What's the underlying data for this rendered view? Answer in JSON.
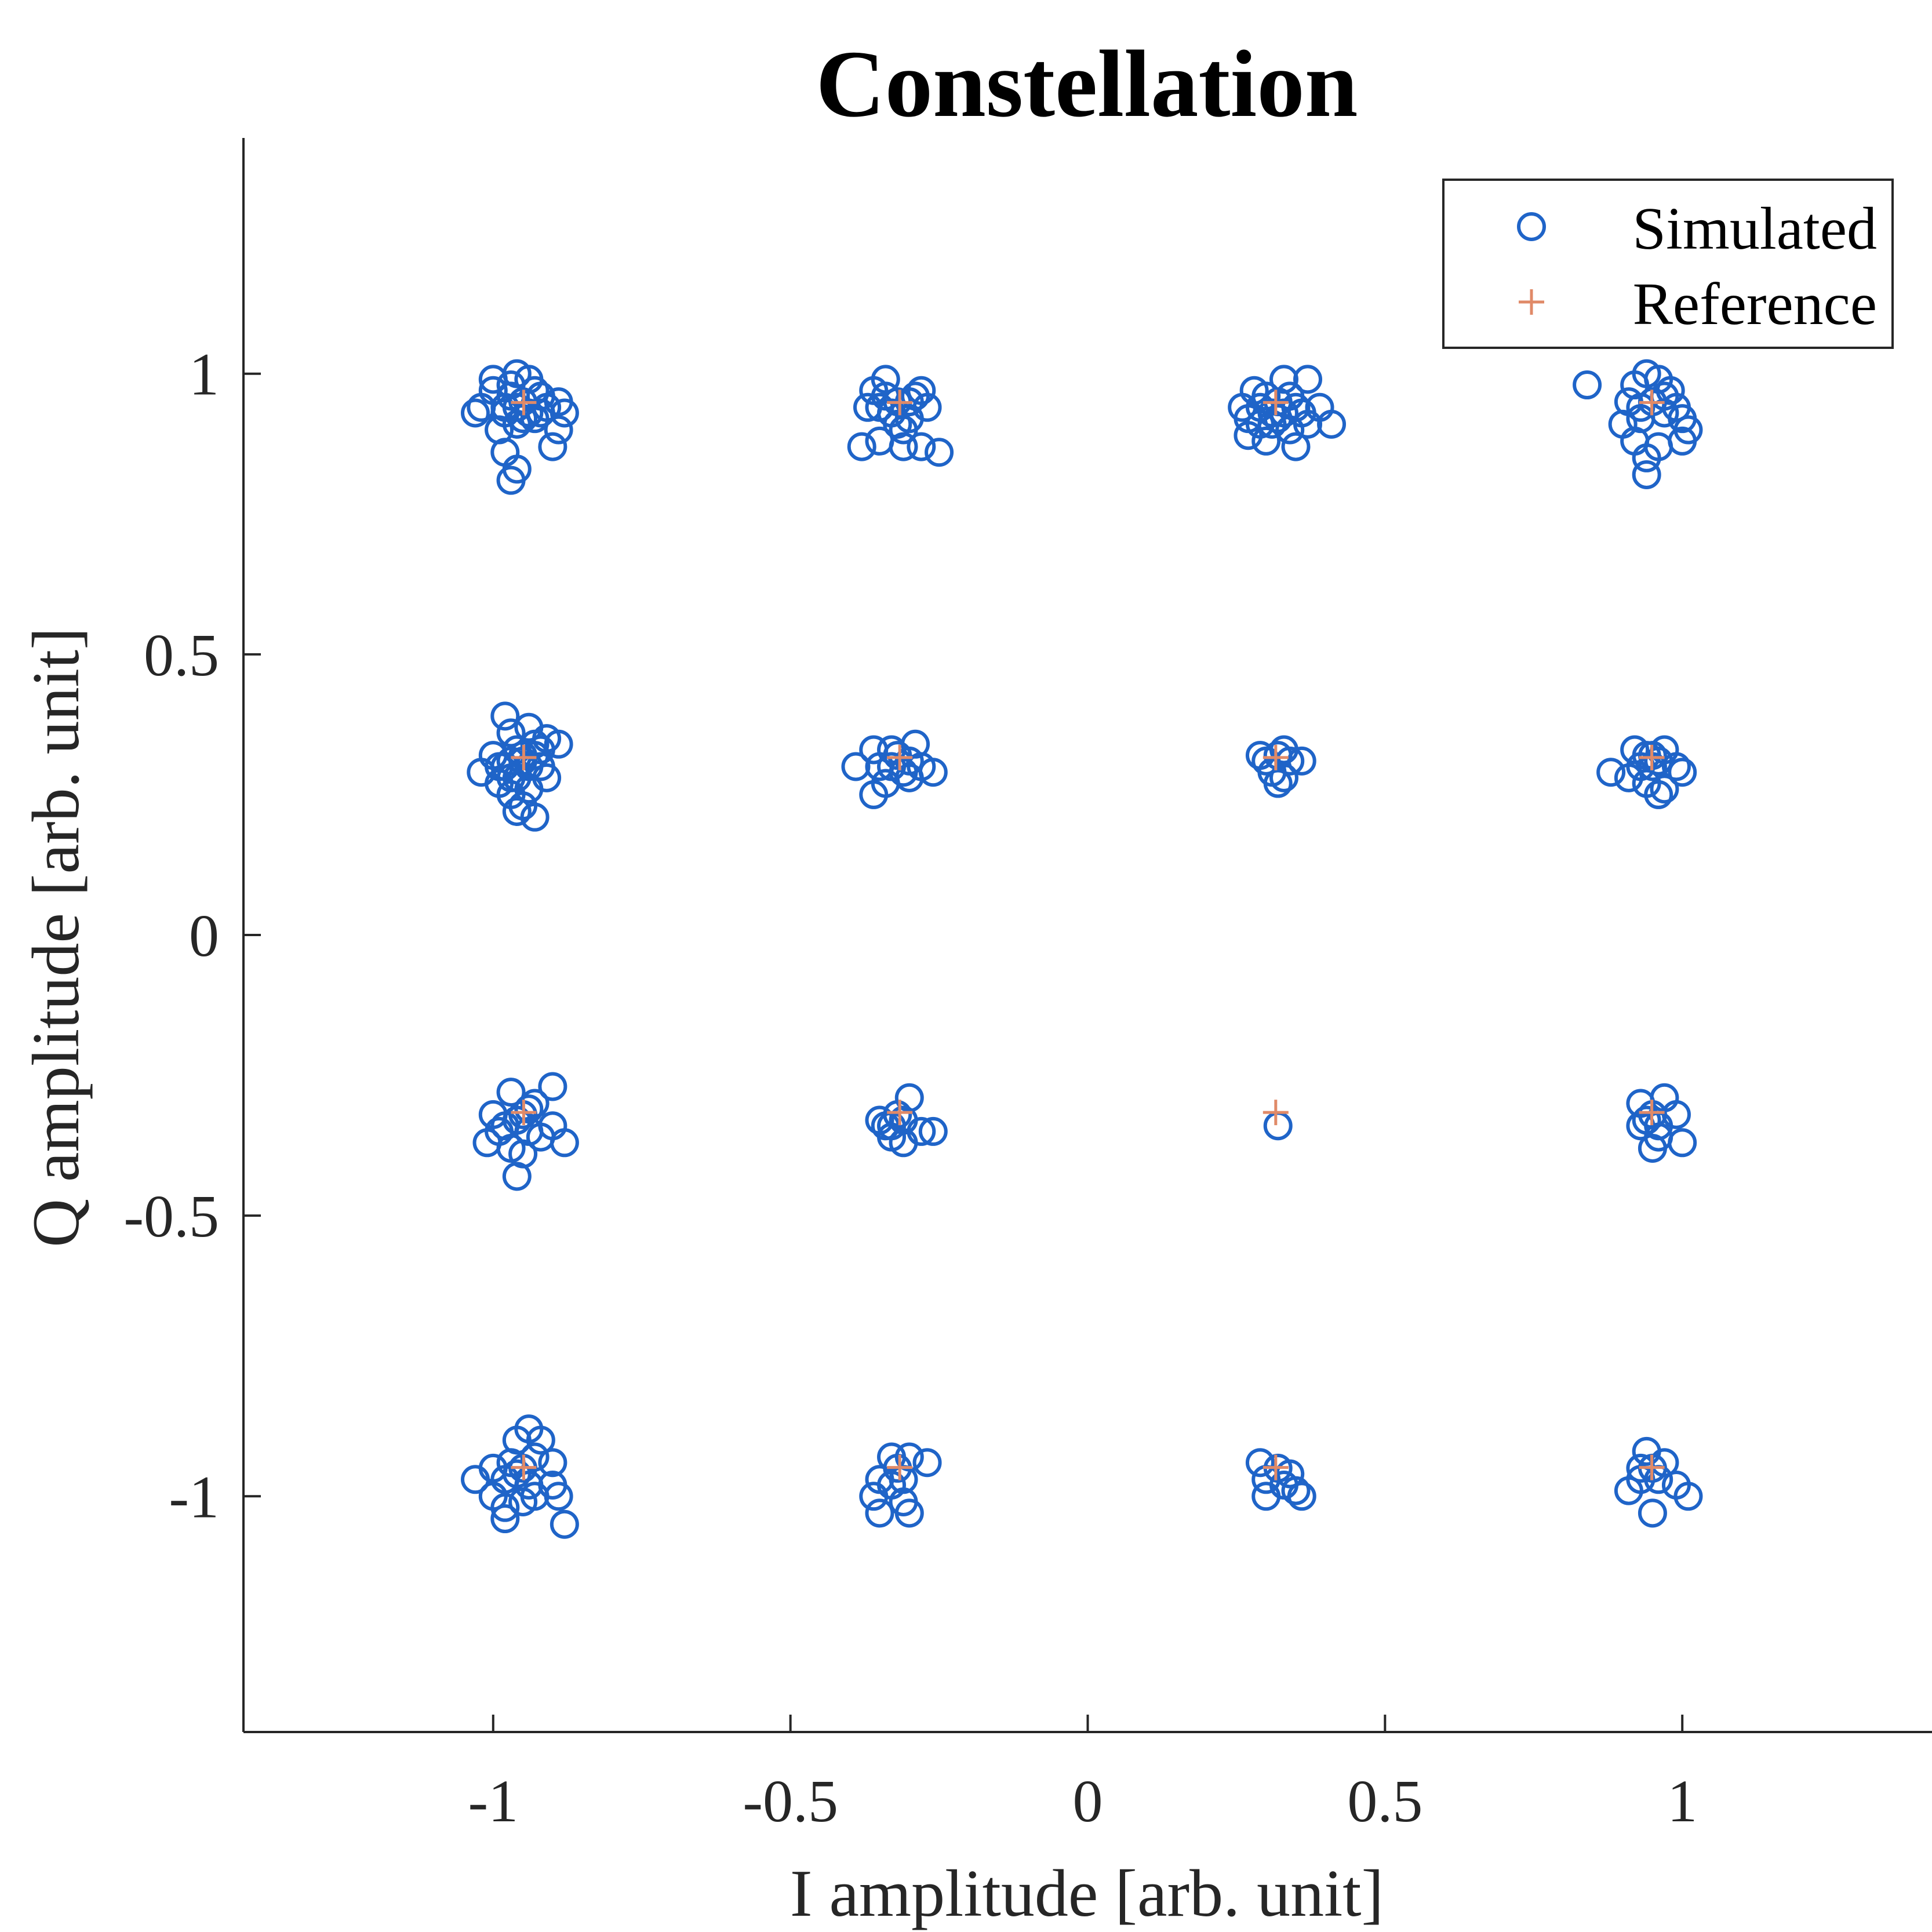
{
  "chart_data": {
    "type": "scatter",
    "title": "Constellation",
    "xlabel": "I amplitude [arb. unit]",
    "ylabel": "Q amplitude [arb. unit]",
    "xlim": [
      -1.42,
      1.42
    ],
    "ylim": [
      -1.42,
      1.42
    ],
    "xticks": [
      -1,
      -0.5,
      0,
      0.5,
      1
    ],
    "xtick_labels": [
      "-1",
      "-0.5",
      "0",
      "0.5",
      "1"
    ],
    "yticks": [
      -1,
      -0.5,
      0,
      0.5,
      1
    ],
    "ytick_labels": [
      "-1",
      "-0.5",
      "0",
      "0.5",
      "1"
    ],
    "grid": false,
    "legend_position": "top-right",
    "series": [
      {
        "name": "Simulated",
        "marker": "circle",
        "color": "#1f64c8",
        "points": [
          [
            -0.95,
            0.95
          ],
          [
            -0.98,
            0.94
          ],
          [
            -0.92,
            0.96
          ],
          [
            -0.96,
            0.91
          ],
          [
            -1.0,
            0.97
          ],
          [
            -1.02,
            0.94
          ],
          [
            -0.94,
            0.99
          ],
          [
            -0.97,
            0.98
          ],
          [
            -0.93,
            0.92
          ],
          [
            -0.99,
            0.9
          ],
          [
            -0.91,
            0.94
          ],
          [
            -0.89,
            0.95
          ],
          [
            -0.88,
            0.93
          ],
          [
            -0.89,
            0.9
          ],
          [
            -0.9,
            0.87
          ],
          [
            -0.98,
            0.86
          ],
          [
            -0.96,
            0.83
          ],
          [
            -0.97,
            0.81
          ],
          [
            -0.96,
            1.0
          ],
          [
            -1.0,
            0.99
          ],
          [
            -1.03,
            0.93
          ],
          [
            -0.94,
            0.93
          ],
          [
            -0.96,
            0.94
          ],
          [
            -0.92,
            0.93
          ],
          [
            -0.98,
            0.93
          ],
          [
            -0.95,
            0.92
          ],
          [
            -0.97,
            0.96
          ],
          [
            -0.93,
            0.97
          ],
          [
            -0.32,
            0.95
          ],
          [
            -0.35,
            0.94
          ],
          [
            -0.29,
            0.96
          ],
          [
            -0.3,
            0.92
          ],
          [
            -0.36,
            0.97
          ],
          [
            -0.37,
            0.94
          ],
          [
            -0.34,
            0.99
          ],
          [
            -0.28,
            0.97
          ],
          [
            -0.27,
            0.94
          ],
          [
            -0.31,
            0.9
          ],
          [
            -0.35,
            0.88
          ],
          [
            -0.31,
            0.87
          ],
          [
            -0.28,
            0.87
          ],
          [
            -0.25,
            0.86
          ],
          [
            -0.38,
            0.87
          ],
          [
            -0.33,
            0.93
          ],
          [
            -0.3,
            0.95
          ],
          [
            -0.32,
            0.91
          ],
          [
            -0.34,
            0.96
          ],
          [
            0.32,
            0.95
          ],
          [
            0.29,
            0.94
          ],
          [
            0.34,
            0.96
          ],
          [
            0.27,
            0.92
          ],
          [
            0.36,
            0.93
          ],
          [
            0.31,
            0.91
          ],
          [
            0.34,
            0.9
          ],
          [
            0.27,
            0.89
          ],
          [
            0.3,
            0.88
          ],
          [
            0.35,
            0.87
          ],
          [
            0.37,
            0.91
          ],
          [
            0.41,
            0.91
          ],
          [
            0.39,
            0.94
          ],
          [
            0.37,
            0.99
          ],
          [
            0.33,
            0.99
          ],
          [
            0.28,
            0.97
          ],
          [
            0.26,
            0.94
          ],
          [
            0.3,
            0.96
          ],
          [
            0.32,
            0.92
          ],
          [
            0.33,
            0.93
          ],
          [
            0.29,
            0.91
          ],
          [
            0.35,
            0.94
          ],
          [
            0.31,
            0.93
          ],
          [
            0.95,
            0.95
          ],
          [
            0.93,
            0.94
          ],
          [
            0.97,
            0.96
          ],
          [
            0.91,
            0.95
          ],
          [
            0.96,
            0.99
          ],
          [
            0.94,
            1.0
          ],
          [
            0.92,
            0.98
          ],
          [
            0.98,
            0.97
          ],
          [
            0.99,
            0.94
          ],
          [
            1.0,
            0.92
          ],
          [
            1.01,
            0.9
          ],
          [
            1.0,
            0.88
          ],
          [
            0.9,
            0.91
          ],
          [
            0.92,
            0.88
          ],
          [
            0.94,
            0.85
          ],
          [
            0.94,
            0.82
          ],
          [
            0.96,
            0.87
          ],
          [
            0.84,
            0.98
          ],
          [
            0.93,
            0.92
          ],
          [
            0.97,
            0.93
          ],
          [
            -0.95,
            0.32
          ],
          [
            -0.98,
            0.3
          ],
          [
            -0.93,
            0.34
          ],
          [
            -0.96,
            0.28
          ],
          [
            -1.0,
            0.32
          ],
          [
            -1.02,
            0.29
          ],
          [
            -0.97,
            0.36
          ],
          [
            -0.94,
            0.37
          ],
          [
            -0.91,
            0.35
          ],
          [
            -0.89,
            0.34
          ],
          [
            -0.92,
            0.3
          ],
          [
            -0.91,
            0.28
          ],
          [
            -0.94,
            0.26
          ],
          [
            -0.97,
            0.25
          ],
          [
            -0.99,
            0.27
          ],
          [
            -0.95,
            0.23
          ],
          [
            -0.93,
            0.21
          ],
          [
            -0.96,
            0.22
          ],
          [
            -0.98,
            0.39
          ],
          [
            -0.95,
            0.31
          ],
          [
            -0.97,
            0.31
          ],
          [
            -0.94,
            0.3
          ],
          [
            -0.96,
            0.33
          ],
          [
            -0.93,
            0.32
          ],
          [
            -0.99,
            0.3
          ],
          [
            -0.97,
            0.28
          ],
          [
            -0.92,
            0.33
          ],
          [
            -0.32,
            0.32
          ],
          [
            -0.35,
            0.3
          ],
          [
            -0.29,
            0.34
          ],
          [
            -0.36,
            0.33
          ],
          [
            -0.3,
            0.28
          ],
          [
            -0.34,
            0.27
          ],
          [
            -0.28,
            0.3
          ],
          [
            -0.26,
            0.29
          ],
          [
            -0.39,
            0.3
          ],
          [
            -0.36,
            0.25
          ],
          [
            -0.31,
            0.29
          ],
          [
            -0.33,
            0.3
          ],
          [
            -0.3,
            0.31
          ],
          [
            -0.33,
            0.33
          ],
          [
            0.32,
            0.32
          ],
          [
            0.3,
            0.31
          ],
          [
            0.34,
            0.31
          ],
          [
            0.31,
            0.29
          ],
          [
            0.33,
            0.28
          ],
          [
            0.32,
            0.27
          ],
          [
            0.36,
            0.31
          ],
          [
            0.29,
            0.32
          ],
          [
            0.33,
            0.33
          ],
          [
            0.95,
            0.32
          ],
          [
            0.93,
            0.3
          ],
          [
            0.97,
            0.33
          ],
          [
            0.92,
            0.33
          ],
          [
            0.99,
            0.3
          ],
          [
            1.0,
            0.29
          ],
          [
            0.94,
            0.27
          ],
          [
            0.97,
            0.26
          ],
          [
            0.96,
            0.25
          ],
          [
            0.91,
            0.28
          ],
          [
            0.88,
            0.29
          ],
          [
            0.95,
            0.3
          ],
          [
            0.96,
            0.31
          ],
          [
            0.94,
            0.32
          ],
          [
            -0.95,
            -0.32
          ],
          [
            -0.98,
            -0.34
          ],
          [
            -0.93,
            -0.3
          ],
          [
            -0.97,
            -0.28
          ],
          [
            -1.0,
            -0.32
          ],
          [
            -1.01,
            -0.37
          ],
          [
            -0.97,
            -0.38
          ],
          [
            -0.95,
            -0.39
          ],
          [
            -0.96,
            -0.43
          ],
          [
            -0.92,
            -0.36
          ],
          [
            -0.9,
            -0.34
          ],
          [
            -0.88,
            -0.37
          ],
          [
            -0.9,
            -0.27
          ],
          [
            -0.94,
            -0.35
          ],
          [
            -0.96,
            -0.33
          ],
          [
            -0.94,
            -0.31
          ],
          [
            -0.99,
            -0.35
          ],
          [
            -0.32,
            -0.32
          ],
          [
            -0.35,
            -0.33
          ],
          [
            -0.3,
            -0.29
          ],
          [
            -0.33,
            -0.36
          ],
          [
            -0.31,
            -0.37
          ],
          [
            -0.28,
            -0.35
          ],
          [
            -0.26,
            -0.35
          ],
          [
            -0.34,
            -0.34
          ],
          [
            -0.31,
            -0.33
          ],
          [
            -0.33,
            -0.34
          ],
          [
            0.32,
            -0.34
          ],
          [
            0.95,
            -0.32
          ],
          [
            0.93,
            -0.3
          ],
          [
            0.97,
            -0.29
          ],
          [
            0.93,
            -0.34
          ],
          [
            0.96,
            -0.36
          ],
          [
            0.95,
            -0.38
          ],
          [
            0.99,
            -0.32
          ],
          [
            1.0,
            -0.37
          ],
          [
            0.94,
            -0.33
          ],
          [
            0.96,
            -0.34
          ],
          [
            -0.95,
            -0.95
          ],
          [
            -0.98,
            -0.97
          ],
          [
            -0.93,
            -0.93
          ],
          [
            -1.0,
            -0.95
          ],
          [
            -1.03,
            -0.97
          ],
          [
            -1.0,
            -1.0
          ],
          [
            -0.98,
            -1.02
          ],
          [
            -0.93,
            -1.0
          ],
          [
            -0.9,
            -0.98
          ],
          [
            -0.89,
            -1.0
          ],
          [
            -0.88,
            -1.05
          ],
          [
            -0.96,
            -0.9
          ],
          [
            -0.92,
            -0.9
          ],
          [
            -0.94,
            -0.88
          ],
          [
            -0.9,
            -0.94
          ],
          [
            -0.98,
            -1.04
          ],
          [
            -0.96,
            -0.96
          ],
          [
            -0.94,
            -0.98
          ],
          [
            -0.97,
            -0.94
          ],
          [
            -0.95,
            -1.01
          ],
          [
            -0.32,
            -0.95
          ],
          [
            -0.35,
            -0.97
          ],
          [
            -0.3,
            -0.93
          ],
          [
            -0.33,
            -0.93
          ],
          [
            -0.36,
            -1.0
          ],
          [
            -0.35,
            -1.03
          ],
          [
            -0.31,
            -1.01
          ],
          [
            -0.3,
            -1.03
          ],
          [
            -0.27,
            -0.94
          ],
          [
            -0.33,
            -0.98
          ],
          [
            -0.31,
            -0.97
          ],
          [
            0.32,
            -0.95
          ],
          [
            0.3,
            -0.97
          ],
          [
            0.34,
            -0.96
          ],
          [
            0.29,
            -0.94
          ],
          [
            0.35,
            -0.99
          ],
          [
            0.36,
            -1.0
          ],
          [
            0.3,
            -1.0
          ],
          [
            0.33,
            -0.98
          ],
          [
            0.95,
            -0.95
          ],
          [
            0.93,
            -0.97
          ],
          [
            0.97,
            -0.94
          ],
          [
            0.94,
            -0.92
          ],
          [
            0.91,
            -0.99
          ],
          [
            0.99,
            -0.98
          ],
          [
            1.01,
            -1.0
          ],
          [
            0.95,
            -1.03
          ],
          [
            0.96,
            -0.97
          ],
          [
            0.93,
            -0.95
          ]
        ]
      },
      {
        "name": "Reference",
        "marker": "plus",
        "color": "#e08a68",
        "points": [
          [
            -0.9487,
            0.9487
          ],
          [
            -0.3162,
            0.9487
          ],
          [
            0.3162,
            0.9487
          ],
          [
            0.9487,
            0.9487
          ],
          [
            -0.9487,
            0.3162
          ],
          [
            -0.3162,
            0.3162
          ],
          [
            0.3162,
            0.3162
          ],
          [
            0.9487,
            0.3162
          ],
          [
            -0.9487,
            -0.3162
          ],
          [
            -0.3162,
            -0.3162
          ],
          [
            0.3162,
            -0.3162
          ],
          [
            0.9487,
            -0.3162
          ],
          [
            -0.9487,
            -0.9487
          ],
          [
            -0.3162,
            -0.9487
          ],
          [
            0.3162,
            -0.9487
          ],
          [
            0.9487,
            -0.9487
          ]
        ]
      }
    ]
  }
}
